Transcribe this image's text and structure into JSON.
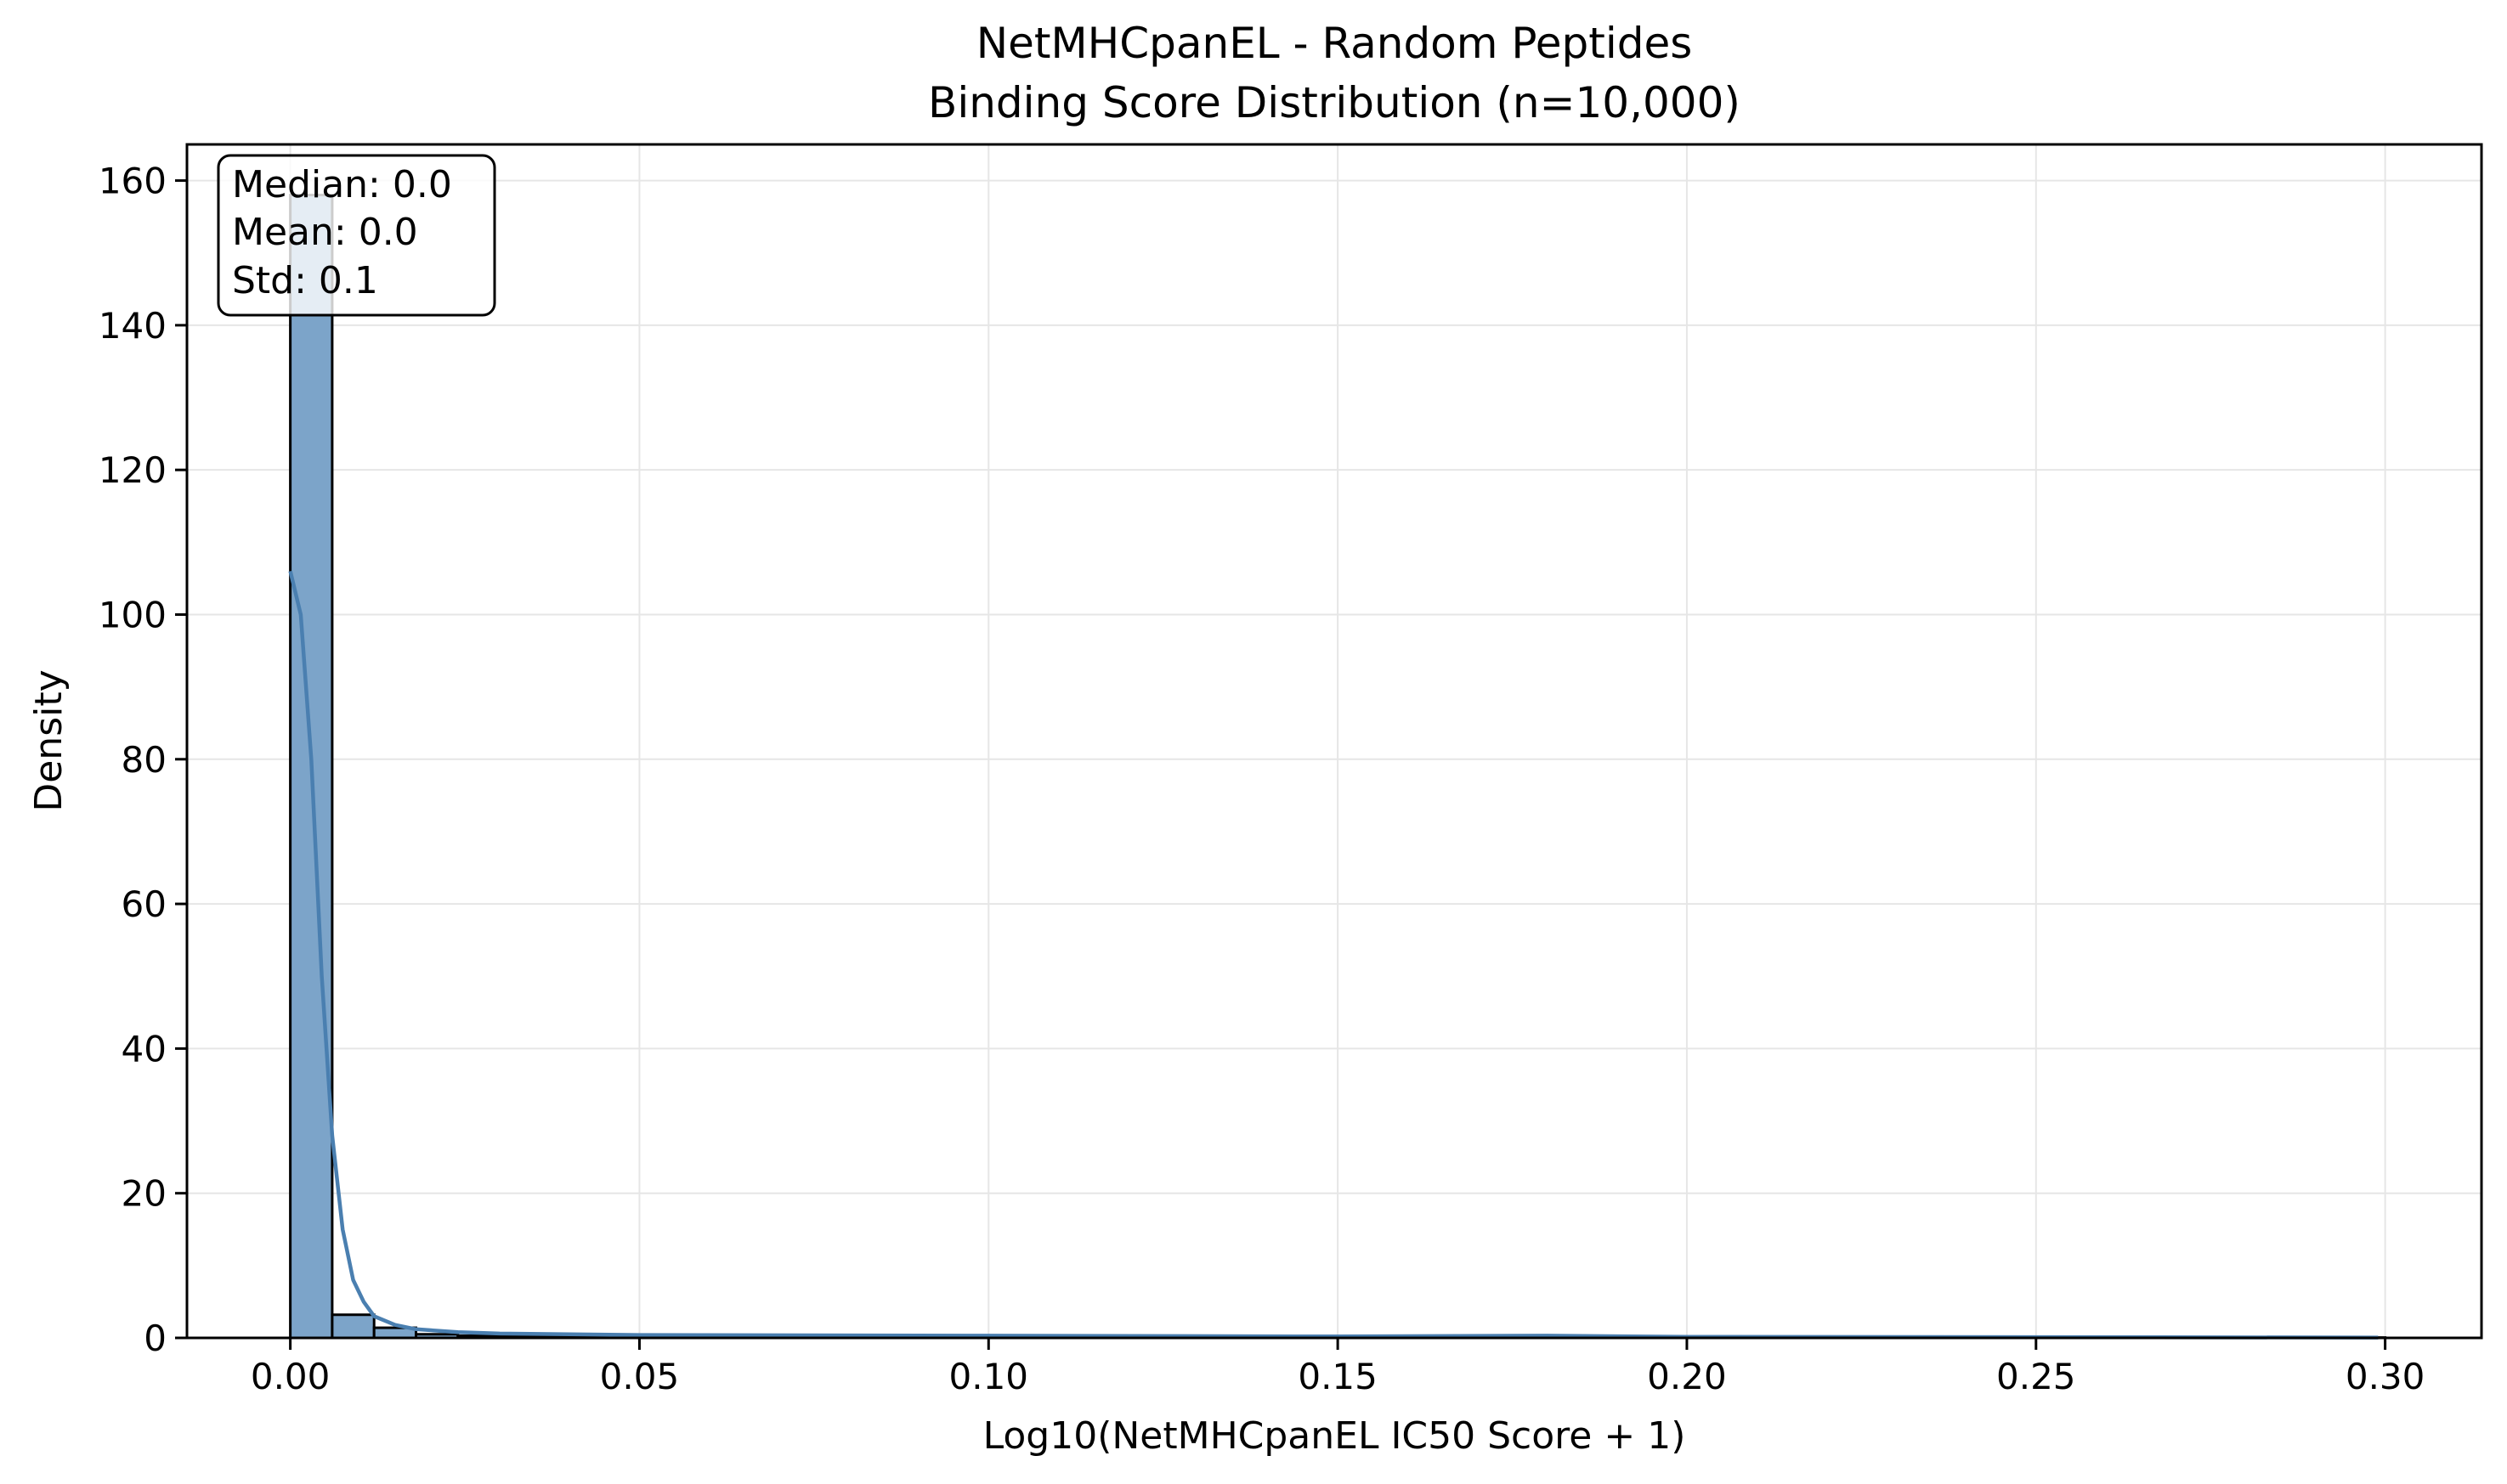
{
  "chart_data": {
    "type": "bar",
    "title": "NetMHCpanEL - Random Peptides",
    "subtitle": "Binding Score Distribution (n=10,000)",
    "xlabel": "Log10(NetMHCpanEL IC50 Score + 1)",
    "ylabel": "Density",
    "xlim": [
      -0.0148,
      0.3138
    ],
    "ylim": [
      0,
      165
    ],
    "xticks": [
      0.0,
      0.05,
      0.1,
      0.15,
      0.2,
      0.25,
      0.3
    ],
    "xtick_labels": [
      "0.00",
      "0.05",
      "0.10",
      "0.15",
      "0.20",
      "0.25",
      "0.30"
    ],
    "yticks": [
      0,
      20,
      40,
      60,
      80,
      100,
      120,
      140,
      160
    ],
    "ytick_labels": [
      "0",
      "20",
      "40",
      "60",
      "80",
      "100",
      "120",
      "140",
      "160"
    ],
    "grid": true,
    "histogram": {
      "bin_edges": [
        0.0,
        0.006,
        0.012,
        0.018,
        0.024,
        0.03,
        0.036,
        0.042,
        0.048,
        0.054,
        0.06,
        0.066,
        0.072,
        0.078,
        0.084,
        0.09,
        0.096,
        0.102,
        0.108,
        0.114,
        0.12,
        0.126,
        0.132,
        0.138,
        0.144,
        0.15,
        0.156,
        0.162,
        0.168,
        0.174,
        0.18,
        0.186,
        0.192,
        0.198,
        0.204,
        0.21,
        0.216,
        0.222,
        0.228,
        0.234,
        0.24,
        0.246,
        0.252,
        0.258,
        0.264,
        0.27,
        0.276,
        0.282,
        0.288,
        0.294,
        0.3
      ],
      "values": [
        158,
        3.2,
        1.4,
        0.5,
        0.3,
        0.2,
        0.2,
        0.1,
        0.1,
        0.1,
        0.1,
        0.05,
        0.05,
        0.05,
        0.05,
        0.05,
        0.05,
        0.05,
        0.05,
        0.05,
        0.05,
        0.05,
        0.05,
        0.05,
        0.05,
        0.05,
        0.05,
        0.05,
        0.05,
        0.05,
        0.05,
        0.05,
        0.05,
        0.05,
        0.05,
        0.05,
        0.05,
        0.05,
        0.05,
        0.05,
        0.05,
        0.05,
        0.05,
        0.05,
        0.05,
        0.05,
        0.05,
        0.05,
        0.05,
        0.05
      ],
      "color": "#7ca4c9",
      "edge_color": "#000000"
    },
    "kde": {
      "color": "#4a7fb0",
      "x": [
        0.0,
        0.0015,
        0.003,
        0.0045,
        0.006,
        0.0075,
        0.009,
        0.0105,
        0.012,
        0.015,
        0.018,
        0.024,
        0.03,
        0.05,
        0.1,
        0.15,
        0.18,
        0.2,
        0.25,
        0.299
      ],
      "y": [
        106,
        100,
        80,
        50,
        28,
        15,
        8,
        5,
        3,
        1.8,
        1.2,
        0.8,
        0.6,
        0.4,
        0.3,
        0.2,
        0.3,
        0.15,
        0.1,
        0.05
      ]
    },
    "stats_box": {
      "lines": [
        "Median: 0.0",
        "Mean: 0.0",
        "Std: 0.1"
      ],
      "position": "top-left"
    }
  }
}
